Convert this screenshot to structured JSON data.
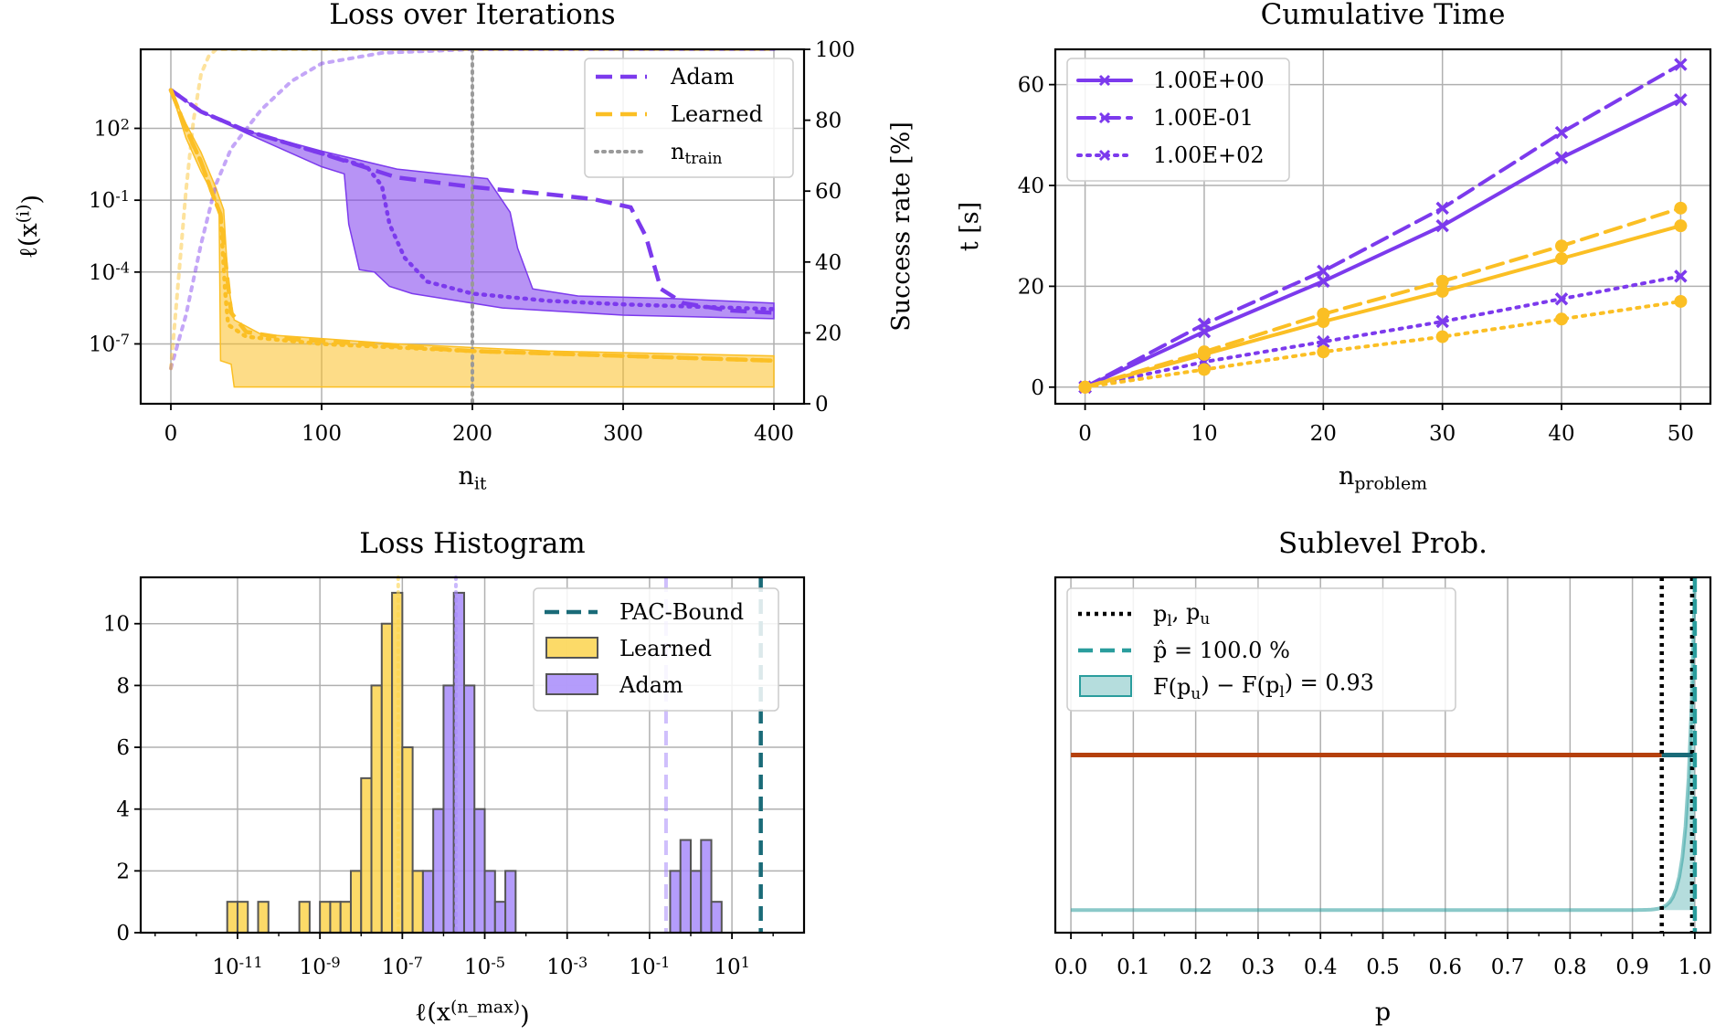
{
  "chart_data": [
    {
      "type": "line",
      "title": "Loss over Iterations",
      "xlabel": "n_it",
      "ylabel": "ℓ(x^(i))",
      "ylabel_right": "Success rate [%]",
      "x_ticks": [
        "0",
        "100",
        "200",
        "300",
        "400"
      ],
      "y_ticks": [
        "10^2",
        "10^-1",
        "10^-4",
        "10^-7"
      ],
      "y_right_ticks": [
        "0",
        "20",
        "40",
        "60",
        "80",
        "100"
      ],
      "xlim": [
        -20,
        420
      ],
      "ylim_log10": [
        -9.5,
        5.3
      ],
      "y_right_lim": [
        0,
        100
      ],
      "log_scale_y": true,
      "grid": true,
      "legend_position": "top-right",
      "legend": [
        "Adam",
        "Learned",
        "n_train"
      ],
      "vline_x": 200,
      "series": [
        {
          "name": "Adam",
          "color": "#7c3aed",
          "median": [
            [
              0,
              3.6
            ],
            [
              20,
              2.7
            ],
            [
              50,
              1.9
            ],
            [
              100,
              0.95
            ],
            [
              150,
              -0.05
            ],
            [
              200,
              -0.45
            ],
            [
              250,
              -0.75
            ],
            [
              280,
              -0.95
            ],
            [
              305,
              -1.3
            ],
            [
              315,
              -2.5
            ],
            [
              325,
              -4.7
            ],
            [
              340,
              -5.3
            ],
            [
              370,
              -5.6
            ],
            [
              400,
              -5.7
            ]
          ],
          "mean": [
            [
              0,
              3.6
            ],
            [
              20,
              2.7
            ],
            [
              50,
              1.9
            ],
            [
              100,
              0.95
            ],
            [
              130,
              0.4
            ],
            [
              140,
              -0.4
            ],
            [
              145,
              -2.0
            ],
            [
              155,
              -3.4
            ],
            [
              170,
              -4.4
            ],
            [
              200,
              -4.9
            ],
            [
              250,
              -5.2
            ],
            [
              300,
              -5.35
            ],
            [
              350,
              -5.45
            ],
            [
              400,
              -5.55
            ]
          ],
          "band_upper": [
            [
              0,
              3.6
            ],
            [
              20,
              2.7
            ],
            [
              50,
              1.9
            ],
            [
              100,
              1.05
            ],
            [
              150,
              0.3
            ],
            [
              210,
              -0.1
            ],
            [
              225,
              -1.5
            ],
            [
              230,
              -3.0
            ],
            [
              240,
              -4.7
            ],
            [
              270,
              -5.0
            ],
            [
              330,
              -5.1
            ],
            [
              400,
              -5.3
            ]
          ],
          "band_lower": [
            [
              0,
              3.6
            ],
            [
              20,
              2.7
            ],
            [
              50,
              1.8
            ],
            [
              100,
              0.4
            ],
            [
              115,
              0.1
            ],
            [
              118,
              -2.0
            ],
            [
              125,
              -3.9
            ],
            [
              135,
              -4.0
            ],
            [
              145,
              -4.6
            ],
            [
              160,
              -4.9
            ],
            [
              220,
              -5.5
            ],
            [
              300,
              -5.8
            ],
            [
              400,
              -5.95
            ]
          ],
          "success_rate": [
            [
              0,
              10
            ],
            [
              10,
              25
            ],
            [
              20,
              45
            ],
            [
              30,
              62
            ],
            [
              40,
              72
            ],
            [
              60,
              83
            ],
            [
              80,
              91
            ],
            [
              100,
              96
            ],
            [
              140,
              99
            ],
            [
              200,
              100
            ],
            [
              400,
              100
            ]
          ]
        },
        {
          "name": "Learned",
          "color": "#fbbf24",
          "median": [
            [
              0,
              3.6
            ],
            [
              10,
              2.0
            ],
            [
              20,
              0.6
            ],
            [
              28,
              -0.8
            ],
            [
              33,
              -1.6
            ],
            [
              37,
              -4.0
            ],
            [
              40,
              -5.7
            ],
            [
              50,
              -6.5
            ],
            [
              80,
              -6.8
            ],
            [
              150,
              -7.1
            ],
            [
              200,
              -7.3
            ],
            [
              300,
              -7.5
            ],
            [
              400,
              -7.7
            ]
          ],
          "mean": [
            [
              0,
              3.6
            ],
            [
              10,
              2.0
            ],
            [
              20,
              0.6
            ],
            [
              28,
              -0.8
            ],
            [
              33,
              -1.6
            ],
            [
              36,
              -4.8
            ],
            [
              38,
              -6.2
            ],
            [
              50,
              -6.7
            ],
            [
              100,
              -7.0
            ],
            [
              200,
              -7.3
            ],
            [
              300,
              -7.5
            ],
            [
              400,
              -7.7
            ]
          ],
          "band_upper": [
            [
              0,
              3.6
            ],
            [
              10,
              2.2
            ],
            [
              20,
              1.0
            ],
            [
              30,
              -0.5
            ],
            [
              35,
              -1.4
            ],
            [
              38,
              -4.5
            ],
            [
              42,
              -6.0
            ],
            [
              60,
              -6.6
            ],
            [
              150,
              -7.0
            ],
            [
              250,
              -7.3
            ],
            [
              400,
              -7.5
            ]
          ],
          "band_lower": [
            [
              0,
              3.6
            ],
            [
              10,
              1.6
            ],
            [
              20,
              0.2
            ],
            [
              25,
              -0.4
            ],
            [
              32,
              -1.4
            ],
            [
              33,
              -7.7
            ],
            [
              40,
              -7.85
            ],
            [
              42,
              -8.8
            ],
            [
              100,
              -8.8
            ],
            [
              200,
              -8.8
            ],
            [
              300,
              -8.8
            ],
            [
              400,
              -8.8
            ]
          ],
          "success_rate": [
            [
              0,
              10
            ],
            [
              5,
              35
            ],
            [
              10,
              60
            ],
            [
              15,
              80
            ],
            [
              20,
              93
            ],
            [
              25,
              98
            ],
            [
              30,
              100
            ],
            [
              400,
              100
            ]
          ]
        }
      ]
    },
    {
      "type": "line",
      "title": "Cumulative Time",
      "xlabel": "n_problem",
      "ylabel": "t [s]",
      "x_ticks": [
        "0",
        "10",
        "20",
        "30",
        "40",
        "50"
      ],
      "y_ticks": [
        "0",
        "20",
        "40",
        "60"
      ],
      "xlim": [
        -2.5,
        52.5
      ],
      "ylim": [
        -3.3,
        67
      ],
      "grid": true,
      "legend_position": "top-left",
      "legend": [
        "1.00E+00",
        "1.00E-01",
        "1.00E+02"
      ],
      "x": [
        0,
        10,
        20,
        30,
        40,
        50
      ],
      "series": [
        {
          "name": "1.00E+00",
          "color": "#7c3aed",
          "dash": "solid",
          "marker": "x",
          "values": [
            0,
            11,
            21,
            32,
            45.5,
            57
          ]
        },
        {
          "name": "1.00E-01",
          "color": "#7c3aed",
          "dash": "dashed",
          "marker": "x",
          "values": [
            0,
            12.5,
            23,
            35.5,
            50.5,
            64
          ]
        },
        {
          "name": "1.00E+02",
          "color": "#7c3aed",
          "dash": "dotted",
          "marker": "x",
          "values": [
            0,
            5,
            9,
            13,
            17.5,
            22
          ]
        },
        {
          "color": "#fbbf24",
          "dash": "solid",
          "marker": "o",
          "values": [
            0,
            6.5,
            13,
            19,
            25.5,
            32
          ]
        },
        {
          "color": "#fbbf24",
          "dash": "dashed",
          "marker": "o",
          "values": [
            0,
            7,
            14.5,
            21,
            28,
            35.5
          ]
        },
        {
          "color": "#fbbf24",
          "dash": "dotted",
          "marker": "o",
          "values": [
            0,
            3.5,
            7,
            10,
            13.5,
            17
          ]
        }
      ]
    },
    {
      "type": "bar",
      "title": "Loss Histogram",
      "xlabel": "ℓ(x^(n_max))",
      "x_ticks": [
        "10^-11",
        "10^-9",
        "10^-7",
        "10^-5",
        "10^-3",
        "10^-1",
        "10^1"
      ],
      "y_ticks": [
        "0",
        "2",
        "4",
        "6",
        "8",
        "10"
      ],
      "xlim_log10": [
        -13.35,
        2.75
      ],
      "ylim": [
        0,
        11.5
      ],
      "log_scale_x": true,
      "grid": true,
      "legend_position": "top-right",
      "legend": [
        "PAC-Bound",
        "Learned",
        "Adam"
      ],
      "pac_bound_log10": 1.7,
      "bin_width_log10": 0.25,
      "series": [
        {
          "name": "Learned",
          "color": "#fcd34d",
          "bins": [
            [
              -11.25,
              1
            ],
            [
              -11.0,
              1
            ],
            [
              -10.5,
              1
            ],
            [
              -9.5,
              1
            ],
            [
              -9.0,
              1
            ],
            [
              -8.75,
              1
            ],
            [
              -8.5,
              1
            ],
            [
              -8.25,
              2
            ],
            [
              -8.0,
              5
            ],
            [
              -7.75,
              8
            ],
            [
              -7.5,
              10
            ],
            [
              -7.25,
              11
            ],
            [
              -7.0,
              6
            ],
            [
              -6.75,
              2
            ]
          ],
          "median_line_log10": -7.1
        },
        {
          "name": "Adam",
          "color": "#a78bfa",
          "bins": [
            [
              -6.5,
              2
            ],
            [
              -6.25,
              4
            ],
            [
              -6.0,
              8
            ],
            [
              -5.75,
              11
            ],
            [
              -5.5,
              8
            ],
            [
              -5.25,
              4
            ],
            [
              -5.0,
              2
            ],
            [
              -4.75,
              1
            ],
            [
              -4.5,
              2
            ],
            [
              -0.5,
              2
            ],
            [
              -0.25,
              3
            ],
            [
              0.0,
              2
            ],
            [
              0.25,
              3
            ],
            [
              0.5,
              1
            ]
          ],
          "median_line_log10": -5.7,
          "extra_line_log10": -0.6
        }
      ]
    },
    {
      "type": "line",
      "title": "Sublevel Prob.",
      "xlabel": "p",
      "x_ticks": [
        "0.0",
        "0.1",
        "0.2",
        "0.3",
        "0.4",
        "0.5",
        "0.6",
        "0.7",
        "0.8",
        "0.9",
        "1.0"
      ],
      "xlim": [
        -0.025,
        1.025
      ],
      "grid": true,
      "legend_position": "top-left",
      "legend": [
        "p_l, p_u",
        "p̂ = 100.0 %",
        "F(p_u) − F(p_l) = 0.93"
      ],
      "p_lower": 0.947,
      "p_hat": 1.0,
      "interval_line": [
        0.0,
        1.0
      ],
      "interval_color": "#b5400c",
      "density_color": "#2a9d9d"
    }
  ]
}
